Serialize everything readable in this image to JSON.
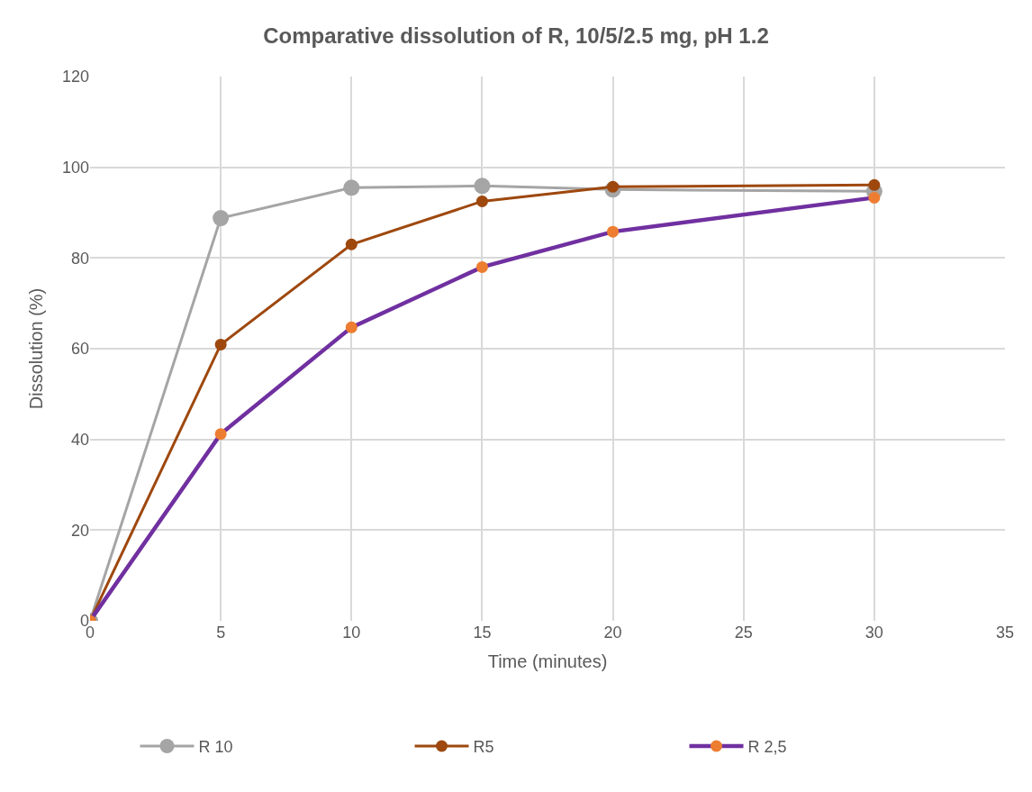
{
  "chart_data": {
    "type": "line",
    "title": "Comparative dissolution of R, 10/5/2.5 mg, pH 1.2",
    "xlabel": "Time (minutes)",
    "ylabel": "Dissolution (%)",
    "x": [
      0,
      5,
      10,
      15,
      20,
      30
    ],
    "series": [
      {
        "name": "R 10",
        "color": "#a5a5a5",
        "values": [
          0,
          88.8,
          95.5,
          95.9,
          95.1,
          94.7
        ]
      },
      {
        "name": "R5",
        "color": "#9e480e",
        "values": [
          0,
          60.9,
          83.0,
          92.5,
          95.7,
          96.1
        ]
      },
      {
        "name": "R 2,5",
        "color": "#7030a0",
        "colors": [
          "#ed7d31",
          "#ed7d31",
          "#ed7d31",
          "#ed7d31",
          "#ed7d31",
          "#ed7d31"
        ],
        "values": [
          0,
          41.2,
          64.7,
          78.0,
          85.8,
          93.3
        ]
      }
    ],
    "xlim": [
      0,
      35
    ],
    "xticks": [
      0,
      5,
      10,
      15,
      20,
      25,
      30,
      35
    ],
    "ylim": [
      0,
      120
    ],
    "yticks": [
      0,
      20,
      40,
      60,
      80,
      100,
      120
    ],
    "grid": true,
    "legend": "bottom",
    "marker": "circle",
    "line_style": "solid"
  }
}
